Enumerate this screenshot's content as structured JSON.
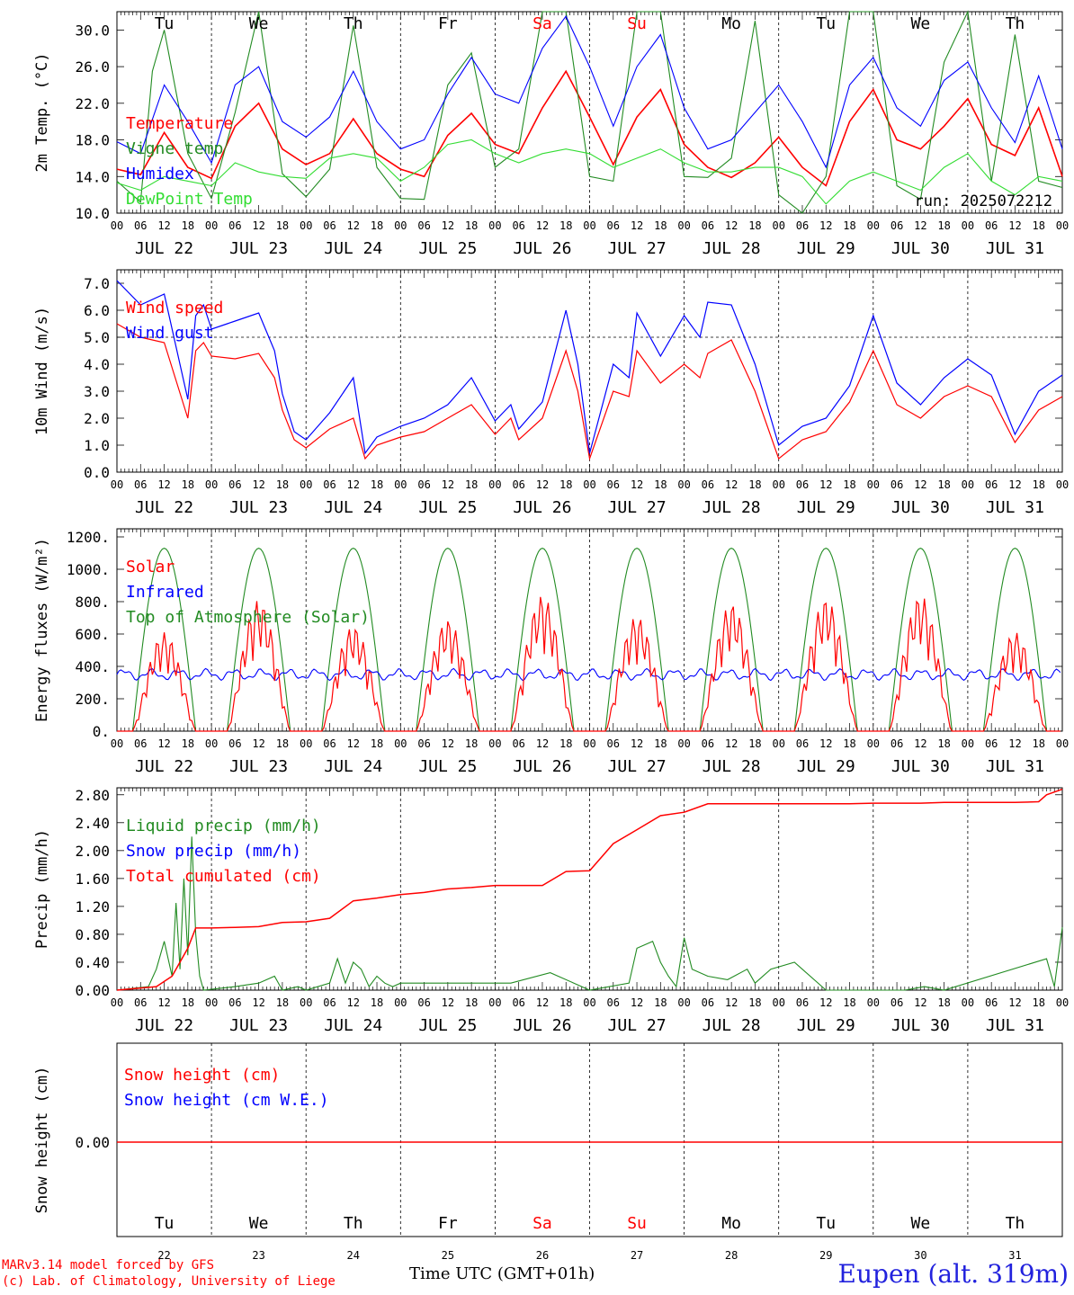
{
  "footer": {
    "model_line": "MARv3.14 model forced by GFS",
    "copyright_line": "(c) Lab. of Climatology, University of Liege",
    "xlabel": "Time UTC (GMT+01h)",
    "station": "Eupen (alt. 319m)"
  },
  "colors": {
    "red": "#ff0000",
    "green": "#228b22",
    "blue": "#0000ff",
    "lightgreen": "#33dd33",
    "station_blue": "#2222dd"
  },
  "chart_data": [
    {
      "type": "line",
      "id": "temperature",
      "ylabel": "2m Temp. (°C)",
      "ylim": [
        10,
        32
      ],
      "yticks": [
        "10.0",
        "14.0",
        "18.0",
        "22.0",
        "26.0",
        "30.0"
      ],
      "xlim_hours": [
        0,
        240
      ],
      "xtick_labels": [
        "00",
        "06",
        "12",
        "18"
      ],
      "date_labels": [
        "JUL 22",
        "JUL 23",
        "JUL 24",
        "JUL 25",
        "JUL 26",
        "JUL 27",
        "JUL 28",
        "JUL 29",
        "JUL 30",
        "JUL 31"
      ],
      "weekday_labels": [
        "Tu",
        "We",
        "Th",
        "Fr",
        "Sa",
        "Su",
        "Mo",
        "Tu",
        "We",
        "Th"
      ],
      "weekend_days": [
        4,
        5
      ],
      "run_label": "run: 2025072212",
      "grid": "vertical dashed at midnight",
      "legend_position": "left",
      "series": [
        {
          "name": "Temperature",
          "color": "#ff0000",
          "x": [
            0,
            6,
            12,
            18,
            24,
            30,
            36,
            42,
            48,
            54,
            60,
            66,
            72,
            78,
            84,
            90,
            96,
            102,
            108,
            114,
            120,
            126,
            132,
            138,
            144,
            150,
            156,
            162,
            168,
            174,
            180,
            186,
            192,
            198,
            204,
            210,
            216,
            222,
            228,
            234,
            240
          ],
          "y": [
            14.8,
            14.2,
            18.8,
            15.0,
            13.8,
            19.5,
            22.0,
            17.0,
            15.3,
            16.5,
            20.3,
            16.5,
            14.8,
            14.0,
            18.5,
            20.9,
            17.5,
            16.5,
            21.5,
            25.5,
            20.5,
            15.3,
            20.5,
            23.5,
            17.5,
            15.0,
            13.9,
            15.5,
            18.3,
            15.0,
            13.0,
            20.0,
            23.5,
            18.0,
            17.0,
            19.5,
            22.5,
            17.5,
            16.3,
            21.5,
            14.0
          ]
        },
        {
          "name": "Vigne temp",
          "color": "#228b22",
          "x": [
            0,
            6,
            9,
            12,
            18,
            24,
            30,
            36,
            42,
            48,
            54,
            60,
            66,
            72,
            78,
            84,
            90,
            96,
            102,
            108,
            114,
            120,
            126,
            132,
            138,
            144,
            150,
            156,
            162,
            168,
            174,
            180,
            186,
            192,
            198,
            204,
            210,
            216,
            222,
            228,
            234,
            240
          ],
          "y": [
            13.5,
            11.2,
            25.5,
            30.0,
            16.5,
            11.6,
            21.0,
            32.0,
            14.3,
            11.8,
            14.8,
            30.5,
            15.0,
            11.6,
            11.5,
            24.0,
            27.5,
            15.0,
            17.0,
            32.0,
            32.0,
            14.0,
            13.5,
            32.0,
            32.0,
            14.0,
            13.9,
            16.0,
            31.0,
            12.0,
            10.0,
            14.0,
            32.0,
            32.0,
            13.0,
            11.5,
            26.5,
            32.0,
            13.5,
            29.5,
            13.5,
            12.8
          ]
        },
        {
          "name": "Humidex",
          "color": "#0000ff",
          "x": [
            0,
            6,
            12,
            18,
            24,
            30,
            36,
            42,
            48,
            54,
            60,
            66,
            72,
            78,
            84,
            90,
            96,
            102,
            108,
            114,
            120,
            126,
            132,
            138,
            144,
            150,
            156,
            162,
            168,
            174,
            180,
            186,
            192,
            198,
            204,
            210,
            216,
            222,
            228,
            234,
            240
          ],
          "y": [
            17.8,
            16.5,
            24.0,
            20.0,
            15.5,
            24.0,
            26.0,
            20.0,
            18.3,
            20.5,
            25.5,
            20.0,
            17.0,
            18.0,
            23.0,
            27.0,
            23.0,
            22.0,
            28.0,
            31.5,
            26.0,
            19.5,
            26.0,
            29.5,
            21.5,
            17.0,
            18.0,
            21.0,
            24.0,
            20.0,
            15.0,
            24.0,
            27.0,
            21.5,
            19.5,
            24.5,
            26.5,
            21.5,
            17.7,
            25.0,
            17.0
          ]
        },
        {
          "name": "DewPoint Temp",
          "color": "#33dd33",
          "x": [
            0,
            6,
            12,
            18,
            24,
            30,
            36,
            42,
            48,
            54,
            60,
            66,
            72,
            78,
            84,
            90,
            96,
            102,
            108,
            114,
            120,
            126,
            132,
            138,
            144,
            150,
            156,
            162,
            168,
            174,
            180,
            186,
            192,
            198,
            204,
            210,
            216,
            222,
            228,
            234,
            240
          ],
          "y": [
            13.3,
            12.5,
            14.0,
            13.5,
            13.0,
            15.5,
            14.5,
            14.0,
            13.8,
            16.0,
            16.5,
            16.0,
            13.5,
            15.0,
            17.5,
            18.0,
            16.5,
            15.5,
            16.5,
            17.0,
            16.5,
            15.0,
            16.0,
            17.0,
            15.5,
            14.5,
            14.5,
            15.0,
            15.0,
            14.0,
            11.0,
            13.5,
            14.5,
            13.5,
            12.5,
            15.0,
            16.5,
            13.5,
            12.0,
            14.0,
            13.5
          ]
        }
      ]
    },
    {
      "type": "line",
      "id": "wind",
      "ylabel": "10m Wind (m/s)",
      "ylim": [
        0,
        7.5
      ],
      "yticks": [
        "0.0",
        "1.0",
        "2.0",
        "3.0",
        "4.0",
        "5.0",
        "6.0",
        "7.0"
      ],
      "reference_line": 5.0,
      "xlim_hours": [
        0,
        240
      ],
      "legend_position": "left",
      "series": [
        {
          "name": "Wind speed",
          "color": "#ff0000",
          "x": [
            0,
            6,
            12,
            18,
            20,
            22,
            24,
            30,
            36,
            40,
            42,
            45,
            48,
            54,
            60,
            63,
            66,
            72,
            78,
            84,
            90,
            96,
            100,
            102,
            108,
            114,
            117,
            120,
            126,
            130,
            132,
            138,
            144,
            148,
            150,
            156,
            162,
            168,
            174,
            180,
            186,
            192,
            198,
            204,
            210,
            216,
            222,
            228,
            234,
            240
          ],
          "y": [
            5.5,
            5.0,
            4.8,
            2.0,
            4.5,
            4.8,
            4.3,
            4.2,
            4.4,
            3.5,
            2.3,
            1.2,
            0.9,
            1.6,
            2.0,
            0.5,
            1.0,
            1.3,
            1.5,
            2.0,
            2.5,
            1.4,
            2.0,
            1.2,
            2.0,
            4.5,
            3.0,
            0.5,
            3.0,
            2.8,
            4.5,
            3.3,
            4.0,
            3.5,
            4.4,
            4.9,
            3.0,
            0.5,
            1.2,
            1.5,
            2.6,
            4.5,
            2.5,
            2.0,
            2.8,
            3.2,
            2.8,
            1.1,
            2.3,
            2.8
          ]
        },
        {
          "name": "Wind gust",
          "color": "#0000ff",
          "x": [
            0,
            6,
            12,
            18,
            20,
            22,
            24,
            30,
            36,
            40,
            42,
            45,
            48,
            54,
            60,
            63,
            66,
            72,
            78,
            84,
            90,
            96,
            100,
            102,
            108,
            114,
            117,
            120,
            126,
            130,
            132,
            138,
            144,
            148,
            150,
            156,
            162,
            168,
            174,
            180,
            186,
            192,
            198,
            204,
            210,
            216,
            222,
            228,
            234,
            240
          ],
          "y": [
            7.1,
            6.2,
            6.6,
            2.7,
            5.8,
            6.2,
            5.3,
            5.6,
            5.9,
            4.5,
            2.9,
            1.5,
            1.2,
            2.2,
            3.5,
            0.7,
            1.3,
            1.7,
            2.0,
            2.5,
            3.5,
            1.9,
            2.5,
            1.6,
            2.6,
            6.0,
            4.0,
            0.7,
            4.0,
            3.5,
            5.9,
            4.3,
            5.8,
            5.0,
            6.3,
            6.2,
            4.0,
            1.0,
            1.7,
            2.0,
            3.2,
            5.8,
            3.3,
            2.5,
            3.5,
            4.2,
            3.6,
            1.4,
            3.0,
            3.6
          ]
        }
      ]
    },
    {
      "type": "line",
      "id": "energy",
      "ylabel": "Energy fluxes (W/m²)",
      "ylim": [
        0,
        1250
      ],
      "yticks": [
        "0.",
        "200.",
        "400.",
        "600.",
        "800.",
        "1000.",
        "1200."
      ],
      "xlim_hours": [
        0,
        240
      ],
      "legend_position": "left",
      "toa_peak": 1130,
      "daylight_hours": [
        4,
        20
      ],
      "infrared_level": 350,
      "series": [
        {
          "name": "Solar",
          "color": "#ff0000",
          "day_peaks": [
            610,
            810,
            650,
            690,
            840,
            710,
            790,
            820,
            840,
            610
          ]
        },
        {
          "name": "Infrared",
          "color": "#0000ff"
        },
        {
          "name": "Top of Atmosphere (Solar)",
          "color": "#228b22"
        }
      ]
    },
    {
      "type": "line",
      "id": "precip",
      "ylabel": "Precip (mm/h)",
      "ylim": [
        0,
        2.9
      ],
      "yticks": [
        "0.00",
        "0.40",
        "0.80",
        "1.20",
        "1.60",
        "2.00",
        "2.40",
        "2.80"
      ],
      "xlim_hours": [
        0,
        240
      ],
      "legend_position": "left",
      "series": [
        {
          "name": "Liquid precip (mm/h)",
          "color": "#228b22",
          "x": [
            0,
            8,
            10,
            12,
            14,
            15,
            16,
            17,
            18,
            19,
            20,
            21,
            22,
            30,
            36,
            40,
            42,
            46,
            48,
            54,
            56,
            58,
            60,
            62,
            64,
            66,
            68,
            70,
            72,
            80,
            90,
            100,
            110,
            112,
            116,
            120,
            130,
            132,
            136,
            138,
            140,
            142,
            144,
            146,
            150,
            155,
            160,
            162,
            166,
            172,
            180,
            200,
            205,
            210,
            236,
            238,
            240
          ],
          "y": [
            0,
            0.05,
            0.3,
            0.7,
            0.2,
            1.25,
            0.3,
            1.6,
            0.5,
            2.2,
            0.8,
            0.2,
            0,
            0.05,
            0.1,
            0.2,
            0,
            0.05,
            0,
            0.1,
            0.45,
            0.1,
            0.4,
            0.3,
            0.05,
            0.2,
            0.1,
            0.05,
            0.1,
            0.1,
            0.1,
            0.1,
            0.25,
            0.2,
            0.1,
            0,
            0.1,
            0.6,
            0.7,
            0.4,
            0.2,
            0.05,
            0.75,
            0.3,
            0.2,
            0.15,
            0.3,
            0.1,
            0.3,
            0.4,
            0,
            0,
            0.05,
            0,
            0.45,
            0.05,
            0.9
          ]
        },
        {
          "name": "Snow precip (mm/h)",
          "color": "#0000ff"
        },
        {
          "name": "Total cumulated (cm)",
          "color": "#ff0000",
          "x": [
            0,
            10,
            14,
            18,
            20,
            22,
            24,
            30,
            36,
            42,
            48,
            54,
            60,
            66,
            72,
            78,
            84,
            90,
            96,
            102,
            108,
            114,
            120,
            126,
            132,
            138,
            144,
            150,
            156,
            162,
            168,
            174,
            180,
            186,
            192,
            198,
            204,
            210,
            216,
            222,
            228,
            234,
            236,
            240
          ],
          "y": [
            0,
            0.05,
            0.2,
            0.6,
            0.89,
            0.89,
            0.89,
            0.9,
            0.91,
            0.97,
            0.98,
            1.03,
            1.28,
            1.32,
            1.37,
            1.4,
            1.45,
            1.47,
            1.5,
            1.5,
            1.5,
            1.7,
            1.71,
            2.1,
            2.3,
            2.5,
            2.55,
            2.67,
            2.67,
            2.67,
            2.67,
            2.67,
            2.67,
            2.67,
            2.68,
            2.68,
            2.68,
            2.69,
            2.69,
            2.69,
            2.69,
            2.7,
            2.8,
            2.88
          ]
        }
      ]
    },
    {
      "type": "line",
      "id": "snow",
      "ylabel": "Snow height (cm)",
      "ytick": "0.00",
      "xlim_hours": [
        0,
        240
      ],
      "legend_position": "left",
      "series": [
        {
          "name": "Snow height (cm)",
          "color": "#ff0000",
          "value": 0.0
        },
        {
          "name": "Snow height (cm W.E.)",
          "color": "#0000ff",
          "value": 0.0
        }
      ],
      "weekday_labels": [
        "Tu",
        "We",
        "Th",
        "Fr",
        "Sa",
        "Su",
        "Mo",
        "Tu",
        "We",
        "Th"
      ],
      "day_numbers": [
        "22",
        "23",
        "24",
        "25",
        "26",
        "27",
        "28",
        "29",
        "30",
        "31"
      ]
    }
  ]
}
